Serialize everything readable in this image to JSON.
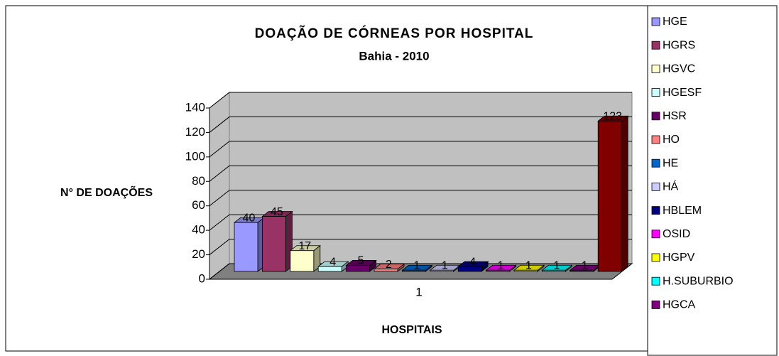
{
  "chart_data": {
    "type": "bar",
    "title": "DOAÇÃO DE CÓRNEAS POR HOSPITAL",
    "subtitle": "Bahia - 2010",
    "ylabel": "N° DE DOAÇÕES",
    "xlabel": "HOSPITAIS",
    "categories": [
      "1"
    ],
    "ylim": [
      0,
      140
    ],
    "yticks": [
      0,
      20,
      40,
      60,
      80,
      100,
      120,
      140
    ],
    "grid": true,
    "legend": "right",
    "series": [
      {
        "name": "HGE",
        "color": "#9999ff",
        "values": [
          40
        ]
      },
      {
        "name": "HGRS",
        "color": "#993366",
        "values": [
          45
        ]
      },
      {
        "name": "HGVC",
        "color": "#ffffcc",
        "values": [
          17
        ]
      },
      {
        "name": "HGESF",
        "color": "#ccffff",
        "values": [
          4
        ]
      },
      {
        "name": "HSR",
        "color": "#660066",
        "values": [
          5
        ]
      },
      {
        "name": "HO",
        "color": "#ff8080",
        "values": [
          2
        ]
      },
      {
        "name": "HE",
        "color": "#0066cc",
        "values": [
          1
        ]
      },
      {
        "name": "HÁ",
        "color": "#ccccff",
        "values": [
          1
        ]
      },
      {
        "name": "HBLEM",
        "color": "#000080",
        "values": [
          4
        ]
      },
      {
        "name": "OSID",
        "color": "#ff00ff",
        "values": [
          1
        ]
      },
      {
        "name": "HGPV",
        "color": "#ffff00",
        "values": [
          1
        ]
      },
      {
        "name": "H.SUBURBIO",
        "color": "#00ffff",
        "values": [
          1
        ]
      },
      {
        "name": "HGCA",
        "color": "#800080",
        "values": [
          1
        ]
      },
      {
        "color": "#800000",
        "values": [
          123
        ]
      }
    ]
  }
}
